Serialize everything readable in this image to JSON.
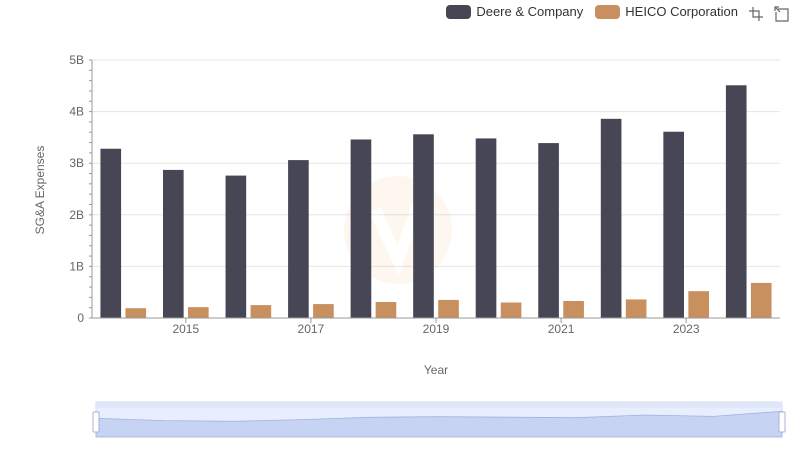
{
  "chart_data": {
    "type": "bar",
    "x": [
      2014,
      2015,
      2016,
      2017,
      2018,
      2019,
      2020,
      2021,
      2022,
      2023,
      2024
    ],
    "x_tick_labels": [
      "2015",
      "2017",
      "2019",
      "2021",
      "2023"
    ],
    "x_tick_values": [
      2015,
      2017,
      2019,
      2021,
      2023
    ],
    "series": [
      {
        "name": "Deere & Company",
        "color": "#474655",
        "values": [
          3.28,
          2.87,
          2.76,
          3.06,
          3.46,
          3.56,
          3.48,
          3.39,
          3.86,
          3.61,
          4.51
        ]
      },
      {
        "name": "HEICO Corporation",
        "color": "#c8905e",
        "values": [
          0.19,
          0.21,
          0.25,
          0.27,
          0.31,
          0.35,
          0.3,
          0.33,
          0.36,
          0.52,
          0.68
        ]
      }
    ],
    "y_tick_labels": [
      "0",
      "1B",
      "2B",
      "3B",
      "4B",
      "5B"
    ],
    "y_tick_values": [
      0,
      1,
      2,
      3,
      4,
      5
    ],
    "ylim": [
      0,
      5
    ],
    "ylabel": "SG&A Expenses",
    "xlabel": "Year",
    "grid": true,
    "legend_position": "top-right"
  },
  "toolbar": {
    "icons": [
      "zoom-in-icon",
      "restore-icon"
    ]
  }
}
